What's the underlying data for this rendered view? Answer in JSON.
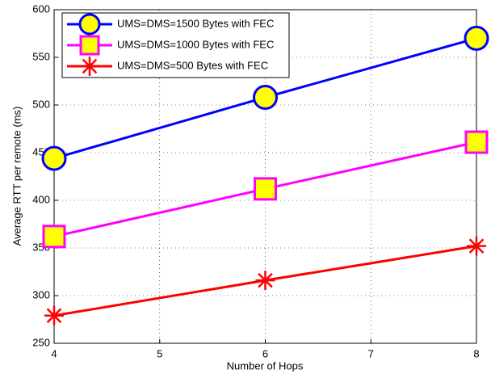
{
  "chart_data": {
    "type": "line",
    "x_label": "Number of Hops",
    "y_label": "Average RTT per remote (ms)",
    "x": [
      4,
      6,
      8
    ],
    "xlim": [
      4,
      8
    ],
    "xticks": [
      4,
      5,
      6,
      7,
      8
    ],
    "ylim": [
      250,
      600
    ],
    "yticks": [
      250,
      300,
      350,
      400,
      450,
      500,
      550,
      600
    ],
    "grid": true,
    "legend": "upper left",
    "series": [
      {
        "name": "UMS=DMS=1500 Bytes with FEC",
        "color": "#0000ff",
        "marker": "circle",
        "marker_fill": "#ffff00",
        "values": [
          444,
          508,
          570
        ]
      },
      {
        "name": "UMS=DMS=1000 Bytes with FEC",
        "color": "#ff00ff",
        "marker": "square",
        "marker_fill": "#ffff00",
        "values": [
          362,
          412,
          461
        ]
      },
      {
        "name": "UMS=DMS=500 Bytes  with FEC",
        "color": "#ff0000",
        "marker": "asterisk",
        "marker_fill": "#ff0000",
        "values": [
          279,
          316,
          352
        ]
      }
    ]
  }
}
